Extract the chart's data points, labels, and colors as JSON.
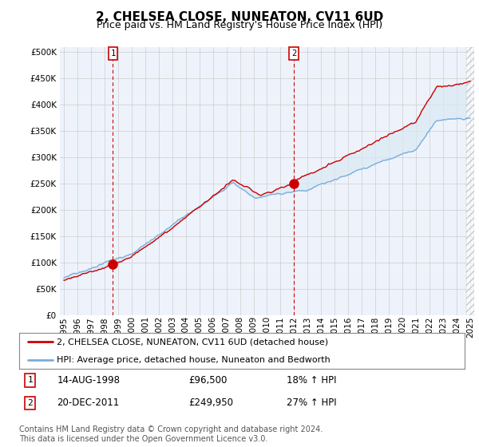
{
  "title": "2, CHELSEA CLOSE, NUNEATON, CV11 6UD",
  "subtitle": "Price paid vs. HM Land Registry's House Price Index (HPI)",
  "ytick_vals": [
    0,
    50000,
    100000,
    150000,
    200000,
    250000,
    300000,
    350000,
    400000,
    450000,
    500000
  ],
  "ylim": [
    0,
    510000
  ],
  "xlim_start": 1994.7,
  "xlim_end": 2025.3,
  "xticks": [
    1995,
    1996,
    1997,
    1998,
    1999,
    2000,
    2001,
    2002,
    2003,
    2004,
    2005,
    2006,
    2007,
    2008,
    2009,
    2010,
    2011,
    2012,
    2013,
    2014,
    2015,
    2016,
    2017,
    2018,
    2019,
    2020,
    2021,
    2022,
    2023,
    2024,
    2025
  ],
  "red_line_color": "#cc0000",
  "blue_line_color": "#7aaddc",
  "fill_color": "#daeaf5",
  "grid_color": "#cccccc",
  "background_color": "#ffffff",
  "chart_bg_color": "#f0f4ff",
  "legend_label_red": "2, CHELSEA CLOSE, NUNEATON, CV11 6UD (detached house)",
  "legend_label_blue": "HPI: Average price, detached house, Nuneaton and Bedworth",
  "sale1_year": 1998.62,
  "sale1_price": 96500,
  "sale1_label": "1",
  "sale2_year": 2011.97,
  "sale2_price": 249950,
  "sale2_label": "2",
  "annotation1_date": "14-AUG-1998",
  "annotation1_price": "£96,500",
  "annotation1_hpi": "18% ↑ HPI",
  "annotation2_date": "20-DEC-2011",
  "annotation2_price": "£249,950",
  "annotation2_hpi": "27% ↑ HPI",
  "footnote": "Contains HM Land Registry data © Crown copyright and database right 2024.\nThis data is licensed under the Open Government Licence v3.0.",
  "title_fontsize": 11,
  "subtitle_fontsize": 9,
  "tick_fontsize": 7.5,
  "legend_fontsize": 8,
  "annot_fontsize": 8.5,
  "footnote_fontsize": 7
}
